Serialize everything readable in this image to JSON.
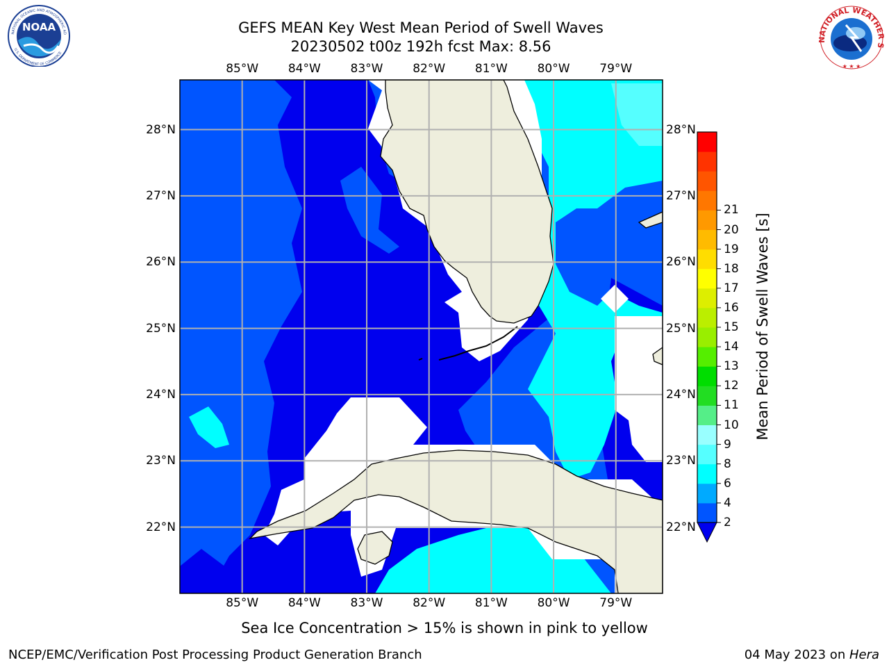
{
  "title": {
    "line1": "GEFS MEAN Key West Mean Period of Swell Waves",
    "line2": "20230502 t00z 192h fcst   Max: 8.56"
  },
  "logos": {
    "noaa": {
      "text": "NOAA",
      "ring_top": "NATIONAL OCEANIC AND ATMOSPHERIC ADMINISTRATION",
      "ring_bottom": "U.S. DEPARTMENT OF COMMERCE"
    },
    "nws": {
      "ring": "NATIONAL WEATHER SERVICE"
    }
  },
  "map": {
    "lon_labels": [
      "85°W",
      "84°W",
      "83°W",
      "82°W",
      "81°W",
      "80°W",
      "79°W"
    ],
    "lat_labels": [
      "28°N",
      "27°N",
      "26°N",
      "25°N",
      "24°N",
      "23°N",
      "22°N"
    ],
    "lon_values": [
      -85,
      -84,
      -83,
      -82,
      -81,
      -80,
      -79
    ],
    "lat_values": [
      28,
      27,
      26,
      25,
      24,
      23,
      22
    ],
    "extent": {
      "lon_min": -86.0,
      "lon_max": -78.25,
      "lat_min": 21.0,
      "lat_max": 28.75
    },
    "colors": {
      "land": "#eeeedd",
      "gridline": "#b0b0b0",
      "coast": "#000000"
    }
  },
  "colorbar": {
    "label": "Mean Period of Swell Waves [s]",
    "ticks": [
      "2",
      "4",
      "6",
      "8",
      "9",
      "10",
      "11",
      "12",
      "13",
      "14",
      "15",
      "16",
      "17",
      "18",
      "19",
      "20",
      "21"
    ],
    "tick_values": [
      2,
      4,
      6,
      8,
      9,
      10,
      11,
      12,
      13,
      14,
      15,
      16,
      17,
      18,
      19,
      20,
      21
    ],
    "colors": [
      "#0055ff",
      "#00aaff",
      "#00ffff",
      "#55ffff",
      "#99ffff",
      "#55ee88",
      "#22dd22",
      "#00dd00",
      "#55ee00",
      "#99ee00",
      "#bbee00",
      "#ddee00",
      "#ffff00",
      "#ffdd00",
      "#ffbb00",
      "#ff9900",
      "#ff7700",
      "#ff5500",
      "#ff3300",
      "#ff0000"
    ],
    "extend_color": "#0000ee"
  },
  "legend_note": "Sea Ice Concentration > 15% is shown in pink to yellow",
  "footer": {
    "left": "NCEP/EMC/Verification Post Processing Product Generation Branch",
    "right_date": "04 May 2023 on ",
    "right_host": "Hera"
  }
}
